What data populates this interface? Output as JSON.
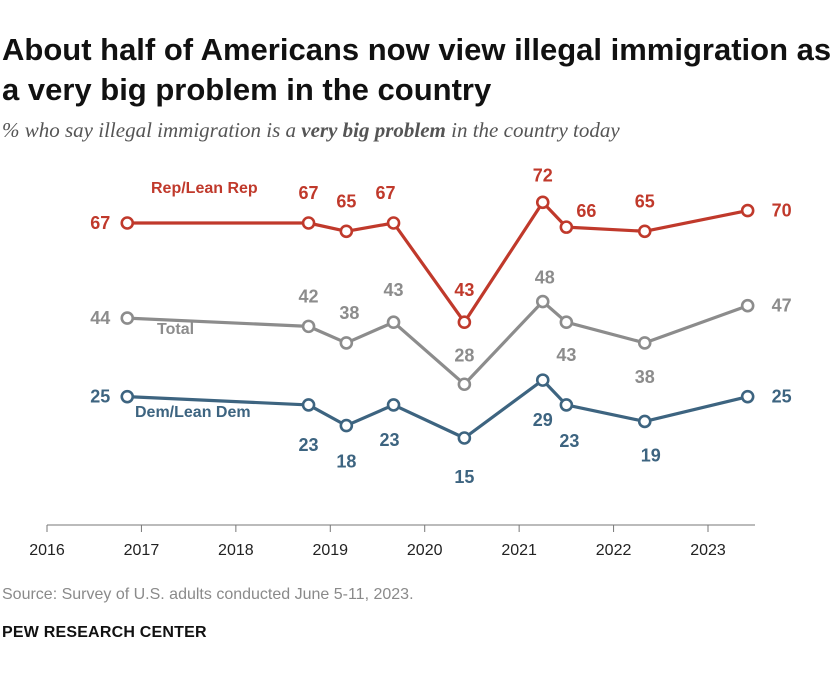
{
  "title": "About half of Americans now view illegal immigration as a very big problem in the country",
  "subtitle": {
    "prefix": "% who say illegal immigration is a ",
    "emphasis": "very big problem",
    "suffix": " in the country today"
  },
  "source": "Source: Survey of U.S. adults conducted June 5-11, 2023.",
  "credit": "PEW RESEARCH CENTER",
  "chart_data": {
    "type": "line",
    "xlim": [
      2016,
      2023.5
    ],
    "ylim": [
      10,
      78
    ],
    "x_ticks": [
      "2016",
      "2017",
      "2018",
      "2019",
      "2020",
      "2021",
      "2022",
      "2023"
    ],
    "grid": false,
    "legend": "inline labels",
    "series": [
      {
        "name": "Rep/Lean Rep",
        "color": "#c0392b",
        "x": [
          2016.85,
          2018.77,
          2019.17,
          2019.67,
          2020.42,
          2021.25,
          2021.5,
          2022.33,
          2023.42
        ],
        "values": [
          67,
          67,
          65,
          67,
          43,
          72,
          66,
          65,
          70
        ],
        "labels": [
          "67",
          "67",
          "65",
          "67",
          "43",
          "72",
          "66",
          "65",
          "70"
        ]
      },
      {
        "name": "Total",
        "color": "#8c8c8c",
        "x": [
          2016.85,
          2018.77,
          2019.17,
          2019.67,
          2020.42,
          2021.25,
          2021.5,
          2022.33,
          2023.42
        ],
        "values": [
          44,
          42,
          38,
          43,
          28,
          48,
          43,
          38,
          47
        ],
        "labels": [
          "44",
          "42",
          "38",
          "43",
          "28",
          "48",
          "43",
          "38",
          "47"
        ]
      },
      {
        "name": "Dem/Lean Dem",
        "color": "#3d6480",
        "x": [
          2016.85,
          2018.77,
          2019.17,
          2019.67,
          2020.42,
          2021.25,
          2021.5,
          2022.33,
          2023.42
        ],
        "values": [
          25,
          23,
          18,
          23,
          15,
          29,
          23,
          19,
          25
        ],
        "labels": [
          "25",
          "23",
          "18",
          "23",
          "15",
          "29",
          "23",
          "19",
          "25"
        ]
      }
    ]
  }
}
